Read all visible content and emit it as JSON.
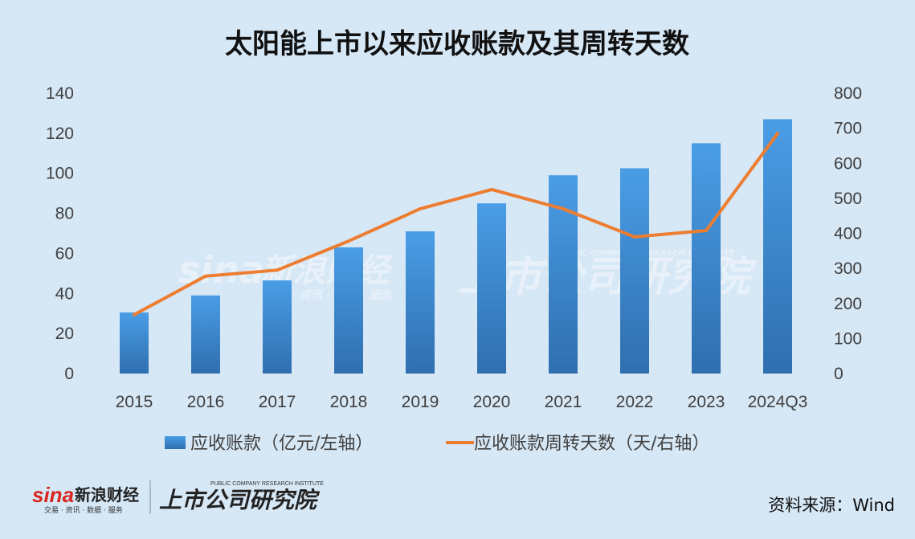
{
  "chart_data": {
    "type": "bar",
    "title": "太阳能上市以来应收账款及其周转天数",
    "categories": [
      "2015",
      "2016",
      "2017",
      "2018",
      "2019",
      "2020",
      "2021",
      "2022",
      "2023",
      "2024Q3"
    ],
    "series": [
      {
        "name": "应收账款（亿元/左轴）",
        "type": "bar",
        "axis": "left",
        "values": [
          30.5,
          39,
          46.5,
          63,
          71,
          85,
          99,
          102.5,
          115,
          127
        ]
      },
      {
        "name": "应收账款周转天数（天/右轴）",
        "type": "line",
        "axis": "right",
        "values": [
          168,
          278,
          295,
          378,
          470,
          525,
          470,
          390,
          408,
          685
        ]
      }
    ],
    "left_axis": {
      "ylim": [
        0,
        140
      ],
      "ticks": [
        "0",
        "20",
        "40",
        "60",
        "80",
        "100",
        "120",
        "140"
      ]
    },
    "right_axis": {
      "ylim": [
        0,
        800
      ],
      "ticks": [
        "0",
        "100",
        "200",
        "300",
        "400",
        "500",
        "600",
        "700",
        "800"
      ]
    },
    "grid": false,
    "legend_position": "bottom",
    "colors": {
      "bar_top": "#4a9de6",
      "bar_bottom": "#2f6faf",
      "line": "#ed7d31",
      "background": "#d6e7f5"
    }
  },
  "source": "资料来源：Wind",
  "watermark": {
    "brand_latin": "sina",
    "brand_cn": "新浪财经",
    "brand_sub": "交易 · 资讯 · 数据 · 服务",
    "institute_cn": "上市公司研究院",
    "institute_en": "PUBLIC COMPANY RESEARCH INSTITUTE"
  },
  "footer_logo": {
    "brand_latin": "sina",
    "brand_cn": "新浪财经",
    "brand_sub": "交易 · 资讯 · 数据 · 服务",
    "institute_cn": "上市公司研究院",
    "institute_en": "PUBLIC COMPANY RESEARCH INSTITUTE"
  }
}
